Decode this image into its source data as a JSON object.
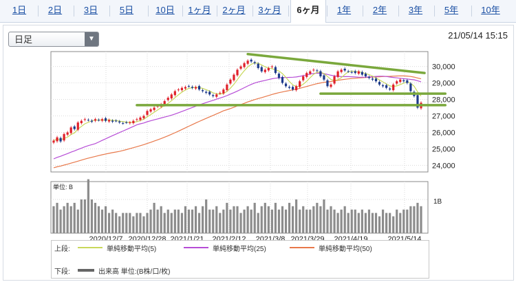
{
  "tabs": [
    {
      "label": "1日"
    },
    {
      "label": "2日"
    },
    {
      "label": "3日"
    },
    {
      "label": "5日"
    },
    {
      "label": "10日"
    },
    {
      "label": "1ヶ月"
    },
    {
      "label": "2ヶ月"
    },
    {
      "label": "3ヶ月"
    },
    {
      "label": "6ヶ月",
      "active": true
    },
    {
      "label": "1年"
    },
    {
      "label": "2年"
    },
    {
      "label": "3年"
    },
    {
      "label": "5年"
    },
    {
      "label": "10年"
    }
  ],
  "period_select": {
    "value": "日足"
  },
  "timestamp": "21/05/14 15:15",
  "colors": {
    "up": "#e0202a",
    "down": "#1d3a8a",
    "ma5": "#c8d85a",
    "ma25": "#b64cd6",
    "ma50": "#e8784a",
    "trendline": "#7aa83c",
    "volume": "#8c8c8c",
    "tab_link": "#1a4fa3"
  },
  "price_axis": {
    "ticks": [
      "30,000",
      "29,000",
      "28,000",
      "27,000",
      "26,000",
      "25,000",
      "24,000"
    ]
  },
  "volume_axis": {
    "unit_label": "単位: B",
    "tick": "1B"
  },
  "x_axis": {
    "ticks": [
      "2020/12/7",
      "2020/12/28",
      "2021/1/21",
      "2021/2/12",
      "2021/3/8",
      "2021/3/29",
      "2021/4/19",
      "2021/5/14"
    ]
  },
  "legend": {
    "upper_label": "上段:",
    "lower_label": "下段:",
    "ma5": "単純移動平均(5)",
    "ma25": "単純移動平均(25)",
    "ma50": "単純移動平均(50)",
    "volume": "出来高 単位:(B株/口/枚)"
  },
  "chart_data": {
    "type": "candlestick",
    "ylim": [
      23600,
      30900
    ],
    "x_tick_labels": [
      "2020/12/7",
      "2020/12/28",
      "2021/1/21",
      "2021/2/12",
      "2021/3/8",
      "2021/3/29",
      "2021/4/19",
      "2021/5/14"
    ],
    "close": [
      25500,
      25700,
      25450,
      25900,
      26000,
      26300,
      26200,
      26600,
      26700,
      26800,
      26750,
      26650,
      26800,
      26750,
      26800,
      26700,
      26750,
      26650,
      26700,
      26600,
      26550,
      26600,
      26600,
      26700,
      26800,
      26900,
      27000,
      27300,
      27400,
      27500,
      27600,
      27700,
      27900,
      28100,
      28300,
      28500,
      28600,
      28700,
      28750,
      28800,
      28700,
      28750,
      28600,
      28500,
      28400,
      28300,
      28200,
      28300,
      28400,
      28600,
      28900,
      29200,
      29500,
      29800,
      30000,
      30200,
      30350,
      30300,
      30200,
      29900,
      29700,
      29800,
      29900,
      30000,
      29600,
      29300,
      29000,
      28800,
      28700,
      28600,
      28800,
      29100,
      29400,
      29600,
      29700,
      29800,
      29750,
      29400,
      29200,
      28800,
      28900,
      29400,
      29700,
      29800,
      29750,
      29700,
      29650,
      29600,
      29700,
      29500,
      29400,
      29300,
      29200,
      29100,
      28900,
      28800,
      28700,
      28600,
      28900,
      29100,
      29200,
      29100,
      29000,
      28500,
      28200,
      27500,
      27800
    ],
    "volume_relative": [
      0.8,
      0.9,
      0.7,
      0.8,
      0.9,
      0.8,
      0.9,
      0.7,
      1.0,
      1.0,
      1.6,
      1.0,
      0.9,
      0.8,
      0.7,
      0.8,
      0.6,
      0.7,
      0.6,
      0.5,
      0.6,
      0.6,
      0.6,
      0.5,
      0.6,
      0.6,
      0.5,
      0.6,
      0.7,
      0.9,
      0.7,
      0.8,
      0.6,
      0.7,
      0.6,
      0.7,
      0.7,
      0.6,
      0.8,
      0.7,
      0.7,
      0.8,
      0.6,
      0.8,
      1.0,
      0.7,
      0.7,
      0.8,
      0.6,
      0.7,
      0.9,
      0.7,
      0.8,
      0.8,
      0.6,
      0.7,
      0.8,
      0.7,
      0.9,
      0.6,
      0.8,
      0.9,
      0.8,
      0.7,
      0.9,
      0.7,
      0.8,
      0.7,
      0.9,
      0.8,
      1.0,
      0.7,
      0.8,
      0.7,
      0.7,
      0.8,
      0.9,
      0.8,
      1.0,
      0.7,
      0.8,
      0.7,
      0.6,
      0.7,
      0.8,
      0.6,
      0.7,
      0.7,
      0.6,
      0.7,
      0.6,
      0.7,
      0.6,
      0.6,
      0.5,
      0.7,
      0.6,
      0.6,
      0.5,
      0.7,
      0.6,
      0.7,
      0.7,
      0.8,
      0.8,
      0.9,
      0.8
    ],
    "trendlines": [
      {
        "from": {
          "index": 56,
          "price": 30750
        },
        "to": {
          "index": 107,
          "price": 29600
        }
      },
      {
        "from": {
          "index": 77,
          "price": 28350
        },
        "to": {
          "index": 113,
          "price": 28350
        }
      },
      {
        "from": {
          "index": 24,
          "price": 27650
        },
        "to": {
          "index": 113,
          "price": 27650
        }
      }
    ]
  }
}
